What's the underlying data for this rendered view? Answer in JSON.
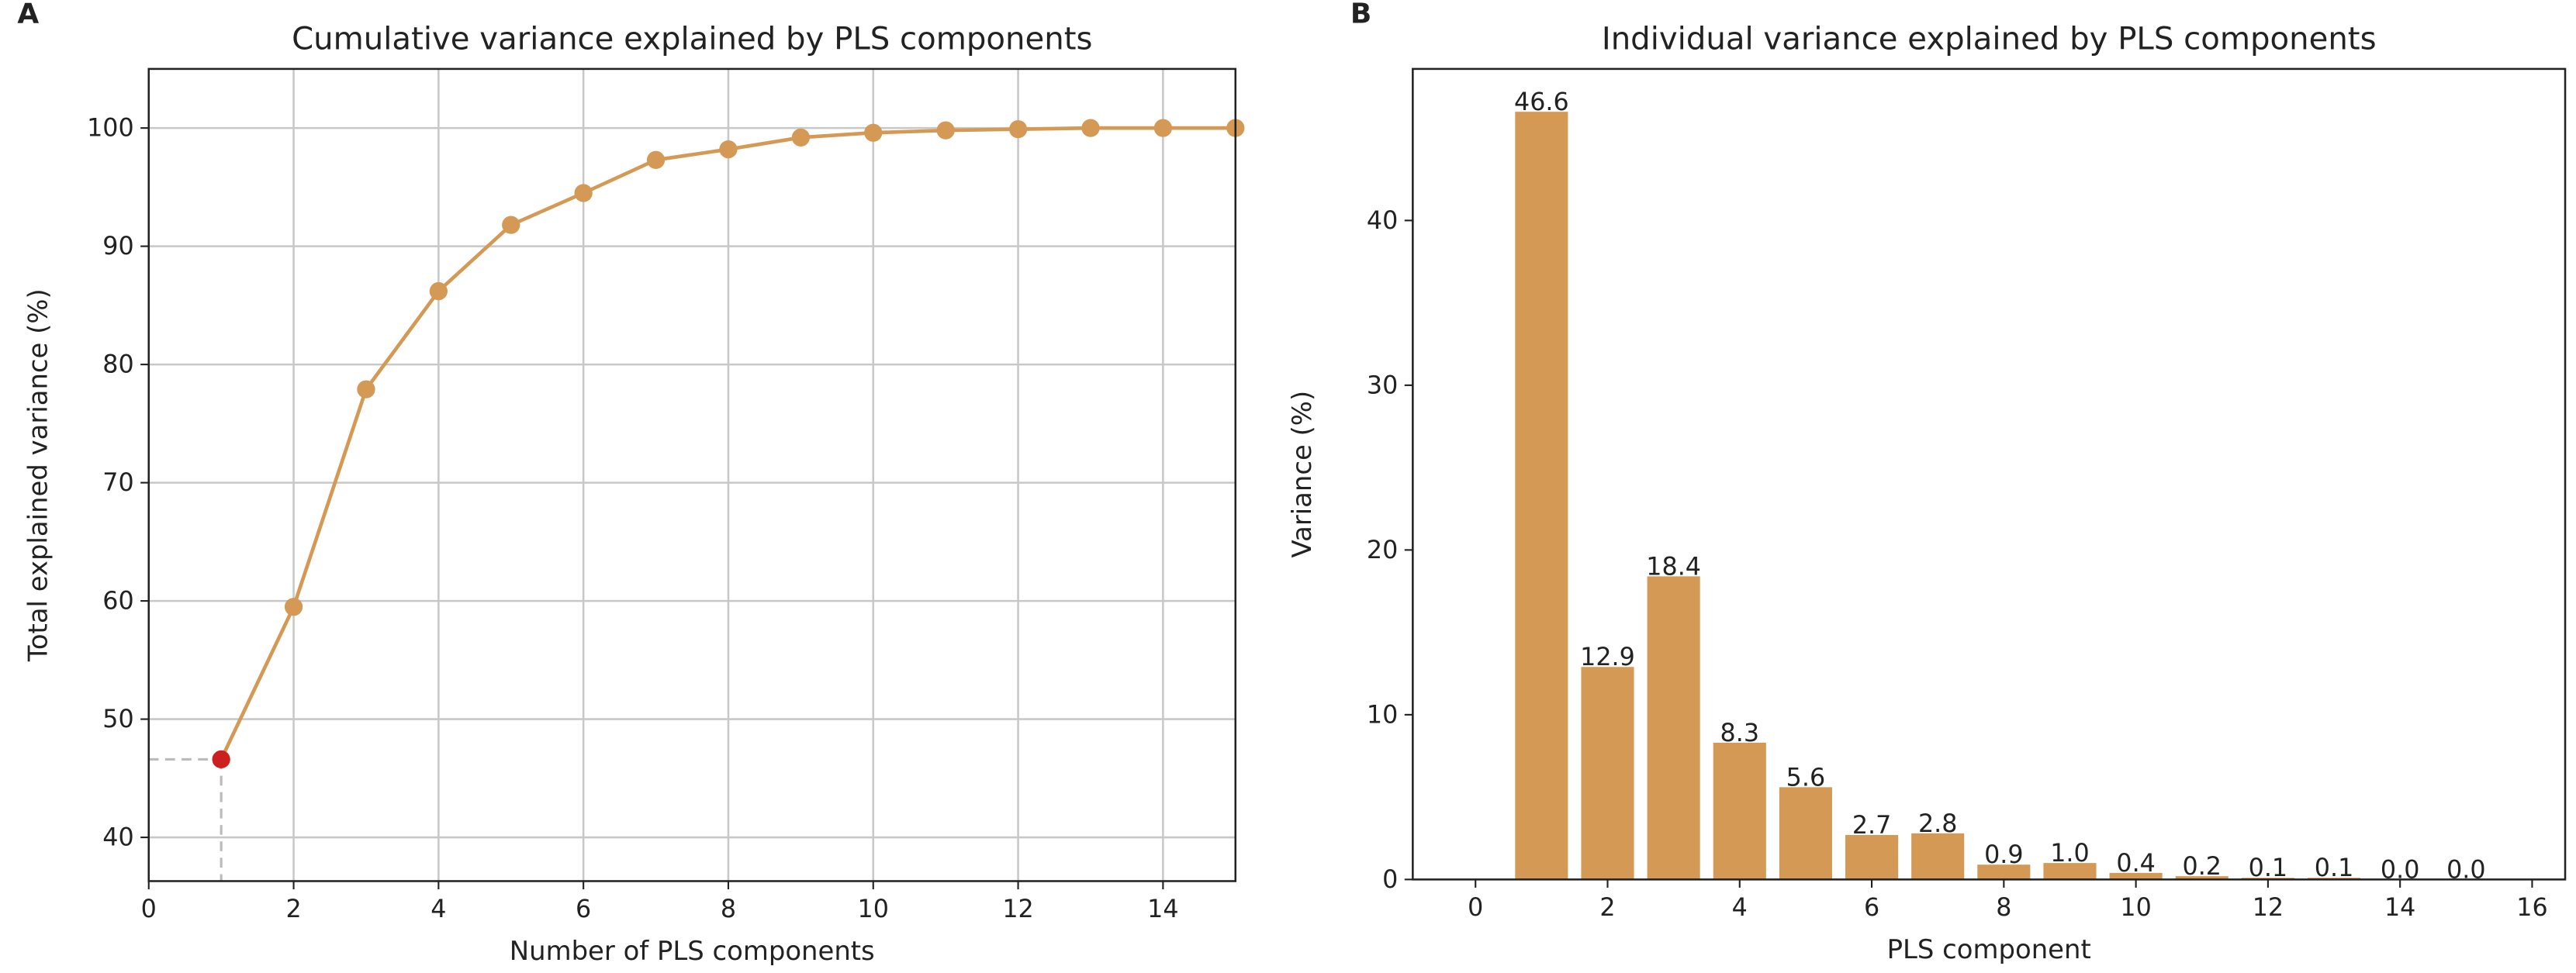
{
  "chart_data": [
    {
      "type": "line",
      "panel_label": "A",
      "title": "Cumulative variance explained by PLS components",
      "xlabel": "Number of PLS components",
      "ylabel": "Total explained variance (%)",
      "x": [
        1,
        2,
        3,
        4,
        5,
        6,
        7,
        8,
        9,
        10,
        11,
        12,
        13,
        14,
        15
      ],
      "values": [
        46.6,
        59.5,
        77.9,
        86.2,
        91.8,
        94.5,
        97.3,
        98.2,
        99.2,
        99.6,
        99.8,
        99.9,
        100.0,
        100.0,
        100.0
      ],
      "color": "#d49a55",
      "highlight": {
        "x": 1,
        "color": "#cc2020"
      },
      "xlim": [
        0,
        15
      ],
      "xticks": [
        0,
        2,
        4,
        6,
        8,
        10,
        12,
        14
      ],
      "ylim": [
        36.3,
        105
      ],
      "yticks": [
        40,
        50,
        60,
        70,
        80,
        90,
        100
      ],
      "grid": true
    },
    {
      "type": "bar",
      "panel_label": "B",
      "title": "Individual variance explained by PLS components",
      "xlabel": "PLS component",
      "ylabel": "Variance (%)",
      "x": [
        1,
        2,
        3,
        4,
        5,
        6,
        7,
        8,
        9,
        10,
        11,
        12,
        13,
        14,
        15
      ],
      "values": [
        46.6,
        12.9,
        18.4,
        8.3,
        5.6,
        2.7,
        2.8,
        0.9,
        1.0,
        0.4,
        0.2,
        0.1,
        0.1,
        0.0,
        0.0
      ],
      "value_labels": [
        "46.6",
        "12.9",
        "18.4",
        "8.3",
        "5.6",
        "2.7",
        "2.8",
        "0.9",
        "1.0",
        "0.4",
        "0.2",
        "0.1",
        "0.1",
        "0.0",
        "0.0"
      ],
      "color": "#d49a55",
      "xlim": [
        -0.95,
        16.5
      ],
      "xticks": [
        0,
        2,
        4,
        6,
        8,
        10,
        12,
        14,
        16
      ],
      "ylim": [
        0,
        49.2
      ],
      "yticks": [
        0,
        10,
        20,
        30,
        40
      ],
      "grid": false
    }
  ]
}
